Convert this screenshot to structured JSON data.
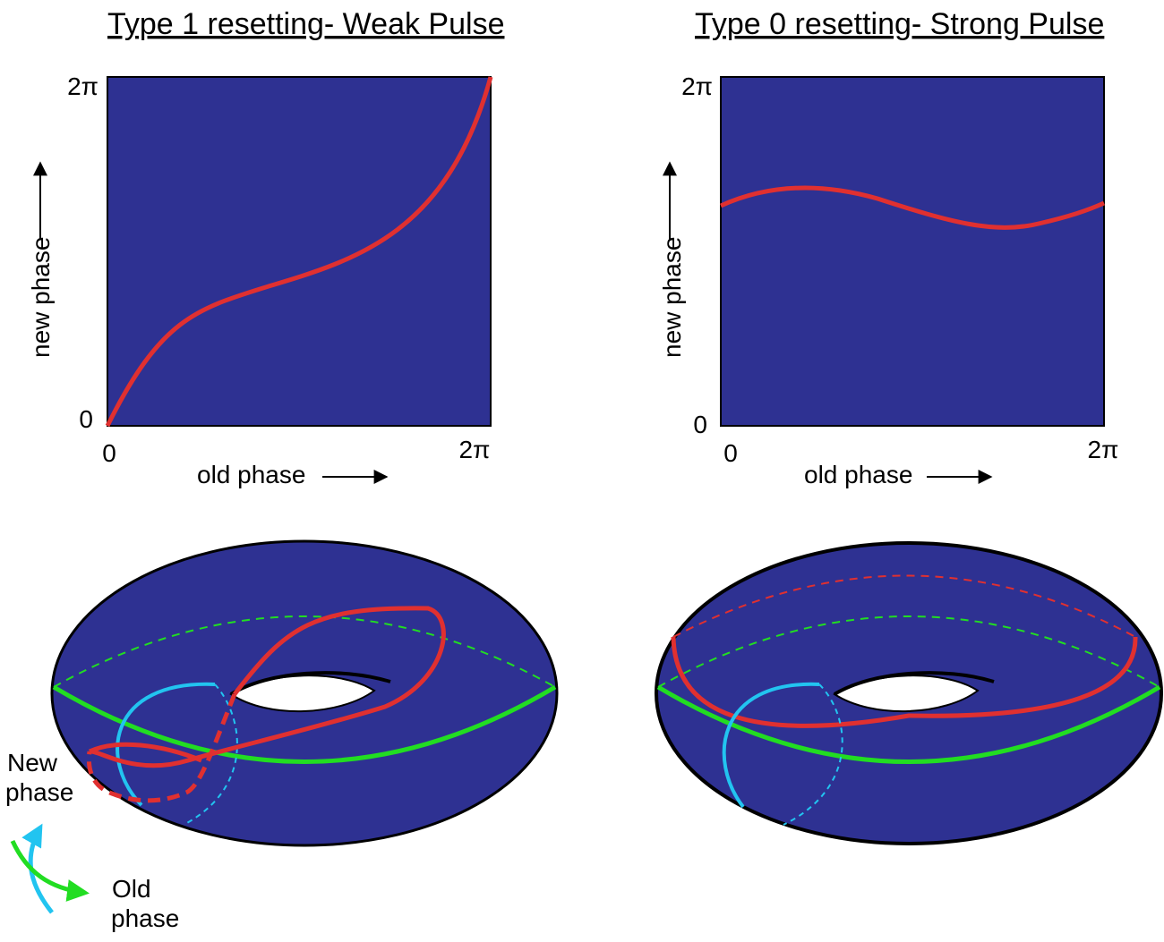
{
  "colors": {
    "plot_bg": "#2e3192",
    "curve": "#e03030",
    "old_phase_axis": "#22dd22",
    "new_phase_axis": "#22c4f0",
    "outline": "#000000"
  },
  "left": {
    "title": "Type 1 resetting- Weak Pulse",
    "x_label": "old phase",
    "y_label": "new phase",
    "x_tick_min": "0",
    "x_tick_max": "2π",
    "y_tick_min": "0",
    "y_tick_max": "2π"
  },
  "right": {
    "title": "Type 0 resetting- Strong Pulse",
    "x_label": "old phase",
    "y_label": "new phase",
    "x_tick_min": "0",
    "x_tick_max": "2π",
    "y_tick_min": "0",
    "y_tick_max": "2π"
  },
  "legend": {
    "new_phase_line1": "New",
    "new_phase_line2": "phase",
    "old_phase_line1": "Old",
    "old_phase_line2": "phase"
  }
}
